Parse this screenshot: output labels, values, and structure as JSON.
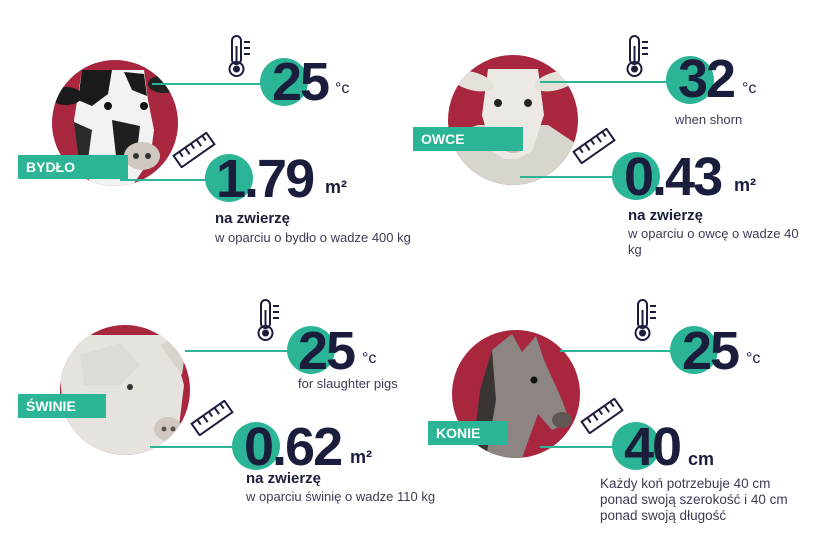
{
  "colors": {
    "accent": "#2bb596",
    "circle": "#a8263e",
    "navy": "#1b1d3c"
  },
  "icons": {
    "temperature": "thermometer-icon",
    "area": "ruler-icon"
  },
  "panels": [
    {
      "animal_label": "BYDŁO",
      "animal_image": "cow",
      "temperature_value": "25",
      "temperature_unit": "°c",
      "temperature_note": "",
      "area_value": "1.79",
      "area_unit": "m²",
      "area_caption": "na zwierzę",
      "area_note": "w oparciu o bydło o wadze 400 kg"
    },
    {
      "animal_label": "OWCE",
      "animal_image": "sheep",
      "temperature_value": "32",
      "temperature_unit": "°c",
      "temperature_note": "when shorn",
      "area_value": "0.43",
      "area_unit": "m²",
      "area_caption": "na zwierzę",
      "area_note": "w oparciu o owcę o wadze 40 kg"
    },
    {
      "animal_label": "ŚWINIE",
      "animal_image": "pig",
      "temperature_value": "25",
      "temperature_unit": "°c",
      "temperature_note": "for slaughter pigs",
      "area_value": "0.62",
      "area_unit": "m²",
      "area_caption": "na zwierzę",
      "area_note": "w oparciu świnię o wadze 110 kg"
    },
    {
      "animal_label": "KONIE",
      "animal_image": "horse",
      "temperature_value": "25",
      "temperature_unit": "°c",
      "temperature_note": "",
      "area_value": "40",
      "area_unit": "cm",
      "area_caption": "",
      "area_note": "Każdy koń potrzebuje 40 cm ponad swoją szerokość i 40 cm ponad swoją długość"
    }
  ]
}
